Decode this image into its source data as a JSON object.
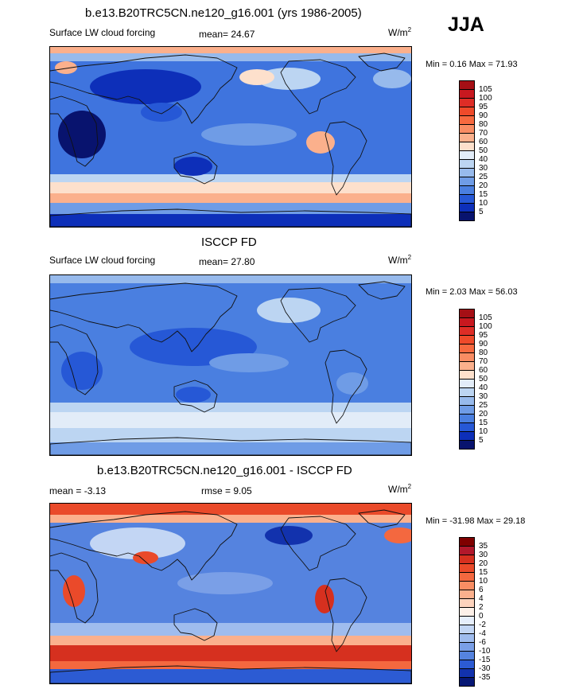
{
  "season": "JJA",
  "panels": [
    {
      "title": "b.e13.B20TRC5CN.ne120_g16.001 (yrs 1986-2005)",
      "left_label": "Surface LW cloud forcing",
      "center_label": "mean=  24.67",
      "units": "W/m",
      "units_sup": "2",
      "minmax": "Min =   0.16 Max =  71.93",
      "field": "model",
      "colorbar": {
        "labels": [
          "105",
          "100",
          "95",
          "90",
          "80",
          "70",
          "60",
          "50",
          "40",
          "30",
          "25",
          "20",
          "15",
          "10",
          "5"
        ],
        "colors": [
          "#a50f15",
          "#c8181f",
          "#de2d26",
          "#ef4a2a",
          "#f7693f",
          "#f98c63",
          "#fbb08c",
          "#fde0cc",
          "#e2ecf8",
          "#bcd5f2",
          "#97baec",
          "#6f9ce6",
          "#4a7fe0",
          "#2658d6",
          "#0d2fb9",
          "#08136e"
        ]
      }
    },
    {
      "title": "ISCCP FD",
      "left_label": "Surface LW cloud forcing",
      "center_label": "mean=  27.80",
      "units": "W/m",
      "units_sup": "2",
      "minmax": "Min =   2.03 Max =  56.03",
      "field": "obs",
      "colorbar": {
        "labels": [
          "105",
          "100",
          "95",
          "90",
          "80",
          "70",
          "60",
          "50",
          "40",
          "30",
          "25",
          "20",
          "15",
          "10",
          "5"
        ],
        "colors": [
          "#a50f15",
          "#c8181f",
          "#de2d26",
          "#ef4a2a",
          "#f7693f",
          "#f98c63",
          "#fbb08c",
          "#fde0cc",
          "#e2ecf8",
          "#bcd5f2",
          "#97baec",
          "#6f9ce6",
          "#4a7fe0",
          "#2658d6",
          "#0d2fb9",
          "#08136e"
        ]
      }
    },
    {
      "title": "b.e13.B20TRC5CN.ne120_g16.001 - ISCCP FD",
      "left_label": "mean =  -3.13",
      "center_label": "rmse =   9.05",
      "units": "W/m",
      "units_sup": "2",
      "minmax": "Min = -31.98 Max =  29.18",
      "field": "diff",
      "colorbar": {
        "labels": [
          "35",
          "30",
          "20",
          "15",
          "10",
          "6",
          "4",
          "2",
          "0",
          "-2",
          "-4",
          "-6",
          "-10",
          "-15",
          "-30",
          "-35"
        ],
        "colors": [
          "#7f0000",
          "#b2182b",
          "#d6301f",
          "#ea4a2a",
          "#f4683f",
          "#f88d63",
          "#fbb08d",
          "#fdd3bd",
          "#fdf0e8",
          "#e6eefb",
          "#c3d6f4",
          "#9fbcee",
          "#7a9fe7",
          "#5583df",
          "#2c5bd3",
          "#1232ad",
          "#061775"
        ]
      }
    }
  ],
  "chart_data": [
    {
      "type": "heatmap",
      "title": "b.e13.B20TRC5CN.ne120_g16.001 (yrs 1986-2005)",
      "variable": "Surface LW cloud forcing",
      "units": "W/m2",
      "mean": 24.67,
      "min": 0.16,
      "max": 71.93,
      "contour_levels": [
        5,
        10,
        15,
        20,
        25,
        30,
        40,
        50,
        60,
        70,
        80,
        90,
        95,
        100,
        105
      ]
    },
    {
      "type": "heatmap",
      "title": "ISCCP FD",
      "variable": "Surface LW cloud forcing",
      "units": "W/m2",
      "mean": 27.8,
      "min": 2.03,
      "max": 56.03,
      "contour_levels": [
        5,
        10,
        15,
        20,
        25,
        30,
        40,
        50,
        60,
        70,
        80,
        90,
        95,
        100,
        105
      ]
    },
    {
      "type": "heatmap",
      "title": "b.e13.B20TRC5CN.ne120_g16.001 - ISCCP FD",
      "units": "W/m2",
      "mean": -3.13,
      "rmse": 9.05,
      "min": -31.98,
      "max": 29.18,
      "contour_levels": [
        -35,
        -30,
        -15,
        -10,
        -6,
        -4,
        -2,
        0,
        2,
        4,
        6,
        10,
        15,
        20,
        30,
        35
      ]
    }
  ]
}
